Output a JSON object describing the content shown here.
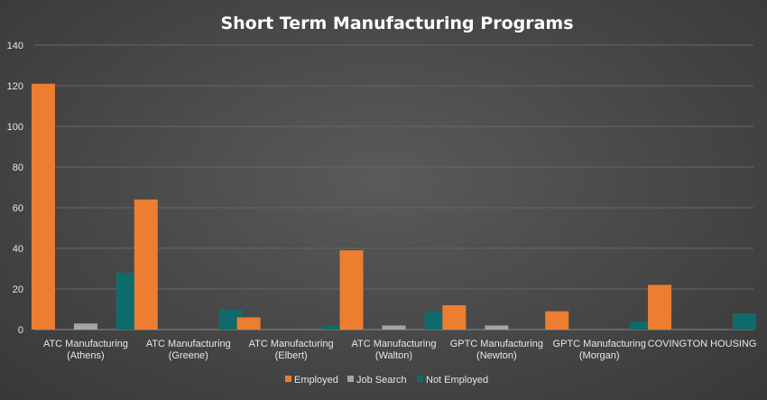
{
  "chart_data": {
    "type": "bar",
    "title": "Short Term Manufacturing Programs",
    "xlabel": "",
    "ylabel": "",
    "ylim": [
      0,
      140
    ],
    "yticks": [
      0,
      20,
      40,
      60,
      80,
      100,
      120,
      140
    ],
    "grid": true,
    "legend_position": "bottom",
    "categories": [
      [
        "ATC Manufacturing",
        "(Athens)"
      ],
      [
        "ATC Manufacturing",
        "(Greene)"
      ],
      [
        "ATC Manufacturing",
        "(Elbert)"
      ],
      [
        "ATC Manufacturing",
        "(Walton)"
      ],
      [
        "GPTC Manufacturing",
        "(Newton)"
      ],
      [
        "GPTC Manufacturing",
        "(Morgan)"
      ],
      [
        "COVINGTON HOUSING"
      ]
    ],
    "series": [
      {
        "name": "Employed",
        "color": "#ed7d31",
        "values": [
          121,
          64,
          6,
          39,
          12,
          9,
          22
        ]
      },
      {
        "name": "Job Search",
        "color": "#a5a5a5",
        "values": [
          3,
          0,
          0,
          2,
          2,
          0,
          0
        ]
      },
      {
        "name": "Not Employed",
        "color": "#0f6b6b",
        "values": [
          28,
          10,
          2,
          9,
          0,
          4,
          8
        ]
      }
    ]
  }
}
